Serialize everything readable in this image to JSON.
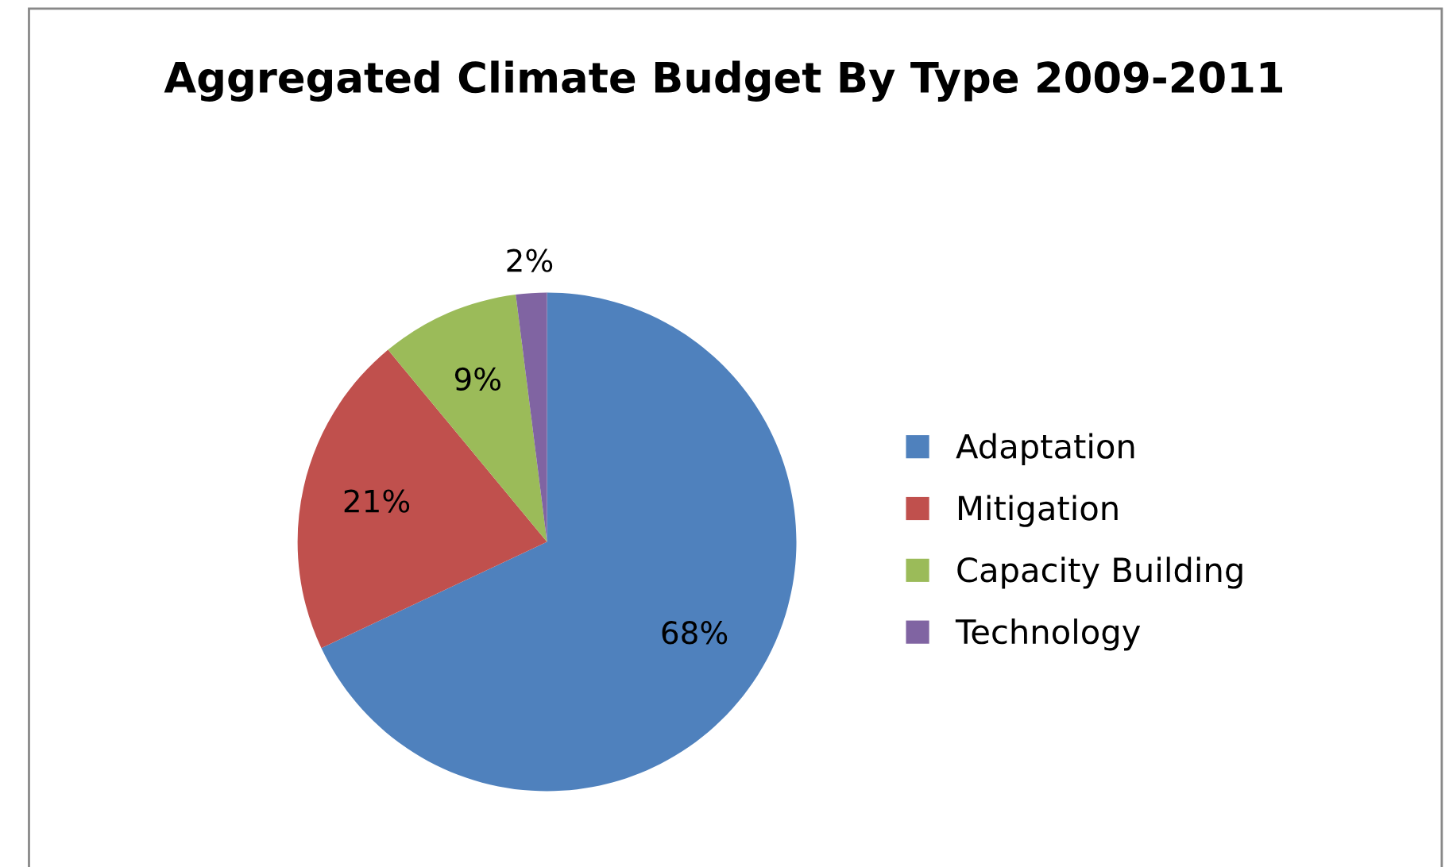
{
  "chart_data": {
    "type": "pie",
    "title": "Aggregated Climate Budget By Type 2009-2011",
    "categories": [
      "Adaptation",
      "Mitigation",
      "Capacity Building",
      "Technology"
    ],
    "values": [
      68,
      21,
      9,
      2
    ],
    "colors": [
      "#4f81bd",
      "#c0504d",
      "#9bbb59",
      "#8064a2"
    ],
    "value_labels": [
      "68%",
      "21%",
      "9%",
      "2%"
    ],
    "legend": "right"
  }
}
